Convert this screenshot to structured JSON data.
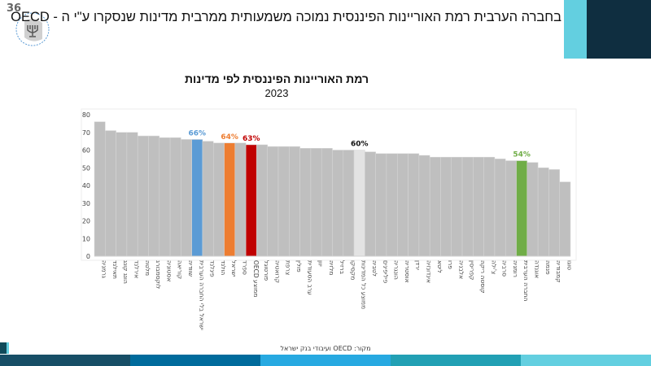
{
  "slide_number": "36",
  "header": {
    "title": "בחברה הערבית רמת האוריינות הפיננסית נמוכה משמעותית ממרבית מדינות שנסקרו ע\"י ה - OECD",
    "logo_text": "בנק ישראל BANK OF ISRAEL"
  },
  "source": "מקור: OECD ועיבודי בנק ישראל",
  "colors": {
    "default": "#bfbfbf",
    "israel_no_arab": "#5b9bd5",
    "israel": "#ed7d31",
    "oecd": "#c00000",
    "all_avg": "#e3e3e3",
    "arab": "#70ad47",
    "navy": "#0f2e40",
    "cyan": "#63cfe0"
  },
  "chart_data": {
    "type": "bar",
    "title": "רמת האוריינות הפיננסית לפי מדינות",
    "subtitle": "2023",
    "xlabel": "",
    "ylabel": "",
    "ylim": [
      0,
      80
    ],
    "yticks": [
      0,
      10,
      20,
      30,
      40,
      50,
      60,
      70,
      80
    ],
    "grid": false,
    "categories": [
      "גרמניה",
      "תאילנד",
      "הונג קונג",
      "אירלנד",
      "מלטה",
      "לוקסמבורג",
      "אסטוניה",
      "קוריאה",
      "שוודיה",
      "ישראל בלי החברה הערבית",
      "פינלנד",
      "הולנד",
      "ישראל",
      "ספרד",
      "ממוצע OECD",
      "פורטוגל",
      "קרואטיה",
      "צרפת",
      "פולין",
      "ערב הסעודית",
      "יוון",
      "מלזיה",
      "ברזיל",
      "מקסיקו",
      "ממוצע כל המדינות",
      "לטביה",
      "פיליפינים",
      "הונגריה",
      "אוסטריה",
      "ירדן",
      "אינדונזיה",
      "ליטא",
      "פרו",
      "אלבניה",
      "קפריסין",
      "קוסטה ריקה",
      "צ'ילה",
      "סרביה",
      "רומניה",
      "החברה הערבית",
      "אוגנדה",
      "פנמה",
      "קמבודיה",
      "טוגו"
    ],
    "values": [
      76,
      71,
      70,
      70,
      68,
      68,
      67,
      67,
      66,
      66,
      65,
      64,
      64,
      64,
      63,
      63,
      62,
      62,
      62,
      61,
      61,
      61,
      60,
      60,
      60,
      59,
      58,
      58,
      58,
      58,
      57,
      56,
      56,
      56,
      56,
      56,
      56,
      55,
      54,
      54,
      53,
      50,
      49,
      42
    ],
    "highlights": [
      {
        "index": 9,
        "label": "66%",
        "color": "#5b9bd5"
      },
      {
        "index": 12,
        "label": "64%",
        "color": "#ed7d31"
      },
      {
        "index": 14,
        "label": "63%",
        "color": "#c00000"
      },
      {
        "index": 24,
        "label": "60%",
        "color": "#e3e3e3",
        "label_color": "#111111"
      },
      {
        "index": 39,
        "label": "54%",
        "color": "#70ad47"
      }
    ]
  }
}
